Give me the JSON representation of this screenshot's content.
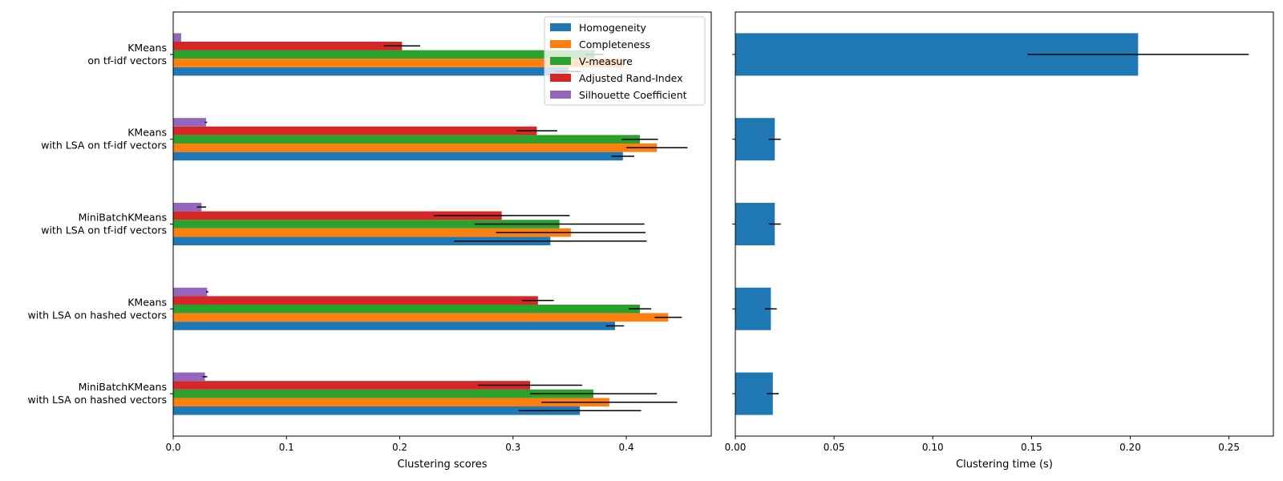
{
  "chart_data": [
    {
      "type": "bar",
      "orientation": "horizontal",
      "xlabel": "Clustering scores",
      "ylabel": "",
      "xlim": [
        0,
        0.475
      ],
      "x_ticks": [
        "0.0",
        "0.1",
        "0.2",
        "0.3",
        "0.4"
      ],
      "grid": false,
      "legend_position": "top-right",
      "categories": [
        [
          "KMeans",
          "on tf-idf vectors"
        ],
        [
          "KMeans",
          "with LSA on tf-idf vectors"
        ],
        [
          "MiniBatchKMeans",
          "with LSA on tf-idf vectors"
        ],
        [
          "KMeans",
          "with LSA on hashed vectors"
        ],
        [
          "MiniBatchKMeans",
          "with LSA on hashed vectors"
        ]
      ],
      "series": [
        {
          "name": "Homogeneity",
          "color": "#1f77b4",
          "values": [
            0.349,
            0.397,
            0.333,
            0.39,
            0.359
          ],
          "errors": [
            0.011,
            0.01,
            0.085,
            0.008,
            0.054
          ]
        },
        {
          "name": "Completeness",
          "color": "#ff7f0e",
          "values": [
            0.398,
            0.427,
            0.351,
            0.437,
            0.385
          ],
          "errors": [
            0.0,
            0.027,
            0.066,
            0.012,
            0.06
          ]
        },
        {
          "name": "V-measure",
          "color": "#2ca02c",
          "values": [
            0.372,
            0.412,
            0.341,
            0.412,
            0.371
          ],
          "errors": [
            0.008,
            0.016,
            0.075,
            0.01,
            0.056
          ]
        },
        {
          "name": "Adjusted Rand-Index",
          "color": "#d62728",
          "values": [
            0.202,
            0.321,
            0.29,
            0.322,
            0.315
          ],
          "errors": [
            0.016,
            0.018,
            0.06,
            0.014,
            0.046
          ]
        },
        {
          "name": "Silhouette Coefficient",
          "color": "#9467bd",
          "values": [
            0.007,
            0.029,
            0.025,
            0.03,
            0.028
          ],
          "errors": [
            0.0,
            0.001,
            0.004,
            0.001,
            0.002
          ]
        }
      ]
    },
    {
      "type": "bar",
      "orientation": "horizontal",
      "xlabel": "Clustering time (s)",
      "ylabel": "",
      "xlim": [
        0,
        0.2725
      ],
      "x_ticks": [
        "0.00",
        "0.05",
        "0.10",
        "0.15",
        "0.20",
        "0.25"
      ],
      "grid": false,
      "series": [
        {
          "name": "",
          "color": "#1f77b4",
          "values": [
            0.204,
            0.02,
            0.02,
            0.018,
            0.019
          ],
          "errors": [
            0.056,
            0.003,
            0.003,
            0.003,
            0.003
          ]
        }
      ]
    }
  ]
}
